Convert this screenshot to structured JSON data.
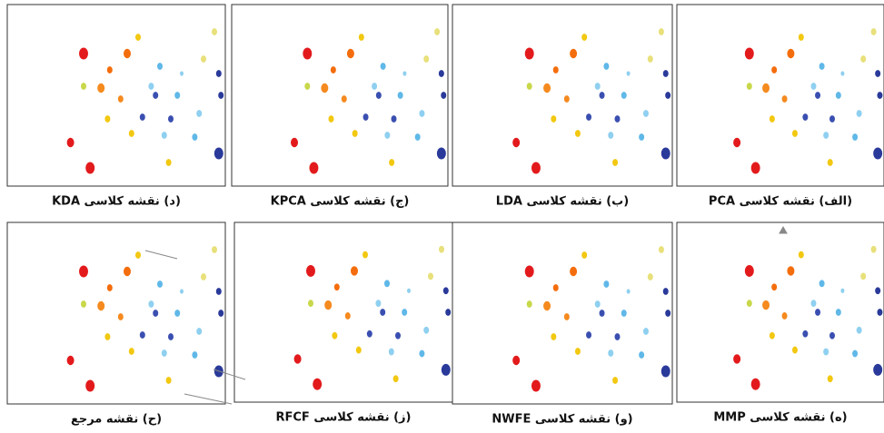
{
  "panels": [
    {
      "caption": "(د) نقشه کلاسی KDA"
    },
    {
      "caption": "(ج) نقشه کلاسی KPCA"
    },
    {
      "caption": "(ب) نقشه کلاسی LDA"
    },
    {
      "caption": "(الف) نقشه کلاسی PCA"
    },
    {
      "caption": "(ح) نقشه مرجع"
    },
    {
      "caption": "(ز) نقشه کلاسی RFCF"
    },
    {
      "caption": "(و) نقشه کلاسی NWFE"
    },
    {
      "caption": "(ه) نقشه کلاسی MMP"
    }
  ]
}
